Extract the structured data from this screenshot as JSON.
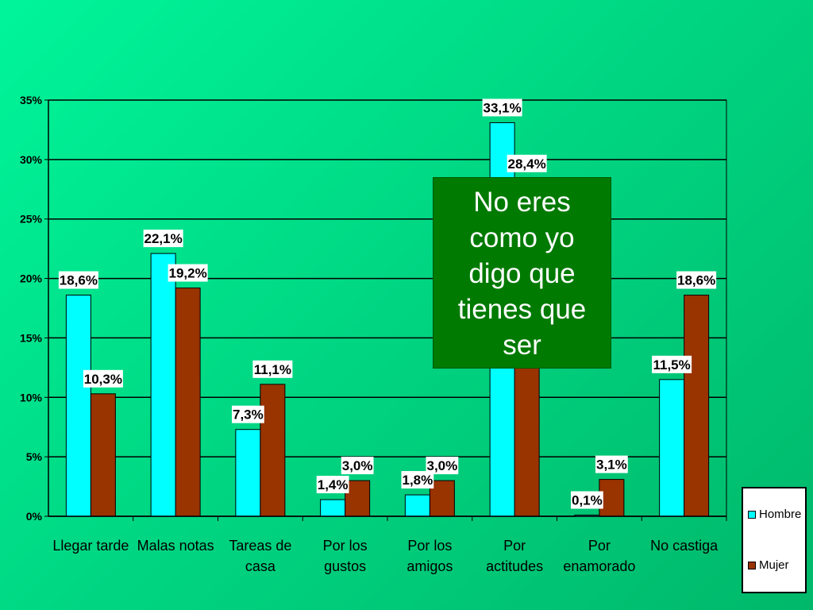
{
  "chart_data": {
    "type": "bar",
    "categories": [
      "Llegar tarde",
      "Malas notas",
      "Tareas de casa",
      "Por los gustos",
      "Por los amigos",
      "Por actitudes",
      "Por enamorado",
      "No castiga"
    ],
    "category_lines": [
      [
        "Llegar tarde"
      ],
      [
        "Malas notas"
      ],
      [
        "Tareas de",
        "casa"
      ],
      [
        "Por los",
        "gustos"
      ],
      [
        "Por los",
        "amigos"
      ],
      [
        "Por",
        "actitudes"
      ],
      [
        "Por",
        "enamorado"
      ],
      [
        "No castiga"
      ]
    ],
    "series": [
      {
        "name": "Hombre",
        "color": "#00ffff",
        "values": [
          18.6,
          22.1,
          7.3,
          1.4,
          1.8,
          33.1,
          0.1,
          11.5
        ],
        "labels": [
          "18,6%",
          "22,1%",
          "7,3%",
          "1,4%",
          "1,8%",
          "33,1%",
          "0,1%",
          "11,5%"
        ]
      },
      {
        "name": "Mujer",
        "color": "#993300",
        "values": [
          10.3,
          19.2,
          11.1,
          3.0,
          3.0,
          28.4,
          3.1,
          18.6
        ],
        "labels": [
          "10,3%",
          "19,2%",
          "11,1%",
          "3,0%",
          "3,0%",
          "28,4%",
          "3,1%",
          "18,6%"
        ]
      }
    ],
    "yticks": [
      "0%",
      "5%",
      "10%",
      "15%",
      "20%",
      "25%",
      "30%",
      "35%"
    ],
    "ylim": [
      0,
      35
    ],
    "grid": true,
    "legend_position": "bottom-right"
  },
  "callout": {
    "lines": [
      "No eres",
      "como yo",
      "digo que",
      "tienes que",
      "ser"
    ]
  },
  "colors": {
    "background": "#00d884",
    "callout": "#007a00"
  }
}
